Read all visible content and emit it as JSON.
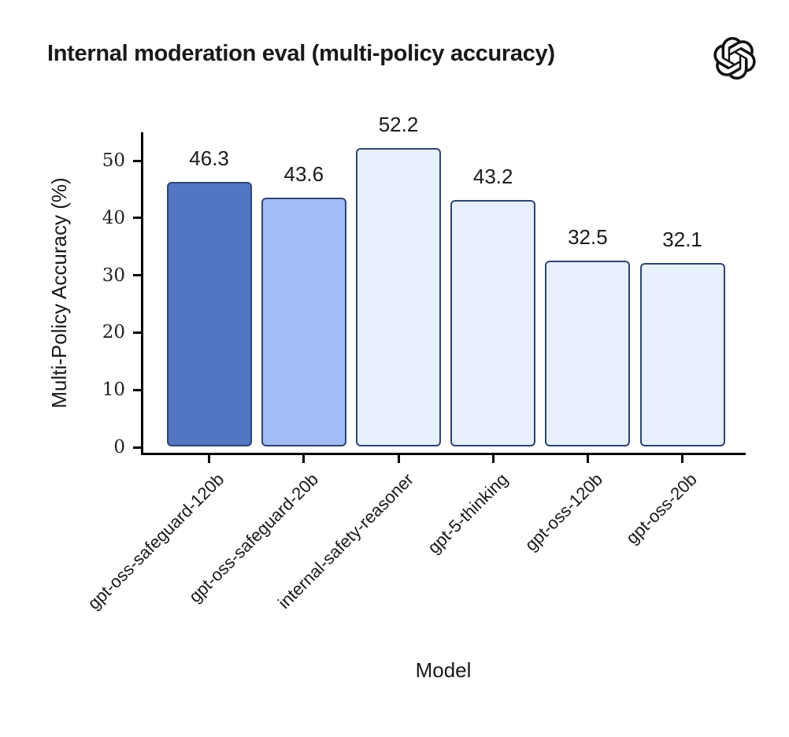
{
  "header": {
    "title": "Internal moderation eval (multi-policy accuracy)",
    "logo_icon": "openai-logo",
    "title_color": "#191919",
    "logo_color": "#111111"
  },
  "chart_data": {
    "type": "bar",
    "title": "Internal moderation eval (multi-policy accuracy)",
    "xlabel": "Model",
    "ylabel": "Multi-Policy Accuracy (%)",
    "categories": [
      "gpt-oss-safeguard-120b",
      "gpt-oss-safeguard-20b",
      "internal-safety-reasoner",
      "gpt-5-thinking",
      "gpt-oss-120b",
      "gpt-oss-20b"
    ],
    "values": [
      46.3,
      43.6,
      52.2,
      43.2,
      32.5,
      32.1
    ],
    "value_labels": [
      "46.3",
      "43.6",
      "52.2",
      "43.2",
      "32.5",
      "32.1"
    ],
    "bar_colors": [
      "#5276c1",
      "#a3bcf6",
      "#e7eefc",
      "#e7eefc",
      "#e7eefc",
      "#e7eefc"
    ],
    "bar_border_color": "#2e4573",
    "yticks": [
      0,
      10,
      20,
      30,
      40,
      50
    ],
    "ylim": [
      0,
      55
    ],
    "axis_color": "#000000",
    "tick_label_color": "#222222",
    "grid": false,
    "legend": null
  }
}
